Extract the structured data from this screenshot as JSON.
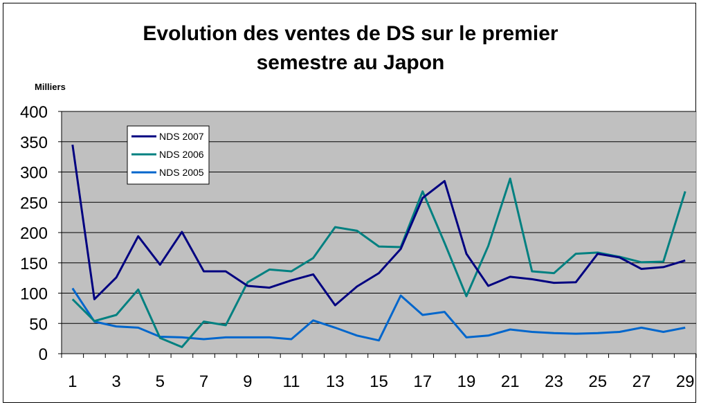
{
  "chart_data": {
    "type": "line",
    "title_line1": "Evolution des ventes de DS sur le premier",
    "title_line2": "semestre au Japon",
    "unit_label": "Milliers",
    "xlabel": "",
    "ylabel": "",
    "ylim": [
      0,
      400
    ],
    "yticks": [
      0,
      50,
      100,
      150,
      200,
      250,
      300,
      350,
      400
    ],
    "x": [
      1,
      2,
      3,
      4,
      5,
      6,
      7,
      8,
      9,
      10,
      11,
      12,
      13,
      14,
      15,
      16,
      17,
      18,
      19,
      20,
      21,
      22,
      23,
      24,
      25,
      26,
      27,
      28,
      29
    ],
    "xtick_labels": [
      "1",
      "3",
      "5",
      "7",
      "9",
      "11",
      "13",
      "15",
      "17",
      "19",
      "21",
      "23",
      "25",
      "27",
      "29"
    ],
    "grid": true,
    "legend_position": "top-left",
    "plot_background": "#c0c0c0",
    "series": [
      {
        "name": "NDS 2007",
        "color": "#000080",
        "values": [
          345,
          90,
          126,
          194,
          147,
          201,
          136,
          136,
          112,
          109,
          121,
          131,
          80,
          111,
          133,
          173,
          257,
          285,
          165,
          112,
          127,
          123,
          117,
          118,
          165,
          159,
          140,
          143,
          154
        ]
      },
      {
        "name": "NDS 2006",
        "color": "#008080",
        "values": [
          90,
          54,
          64,
          106,
          26,
          11,
          53,
          47,
          118,
          139,
          136,
          158,
          209,
          203,
          177,
          176,
          268,
          183,
          95,
          178,
          289,
          136,
          133,
          165,
          167,
          160,
          151,
          152,
          268
        ]
      },
      {
        "name": "NDS 2005",
        "color": "#0066cc",
        "values": [
          108,
          53,
          45,
          43,
          28,
          27,
          24,
          27,
          27,
          27,
          24,
          55,
          43,
          30,
          22,
          96,
          64,
          69,
          27,
          30,
          40,
          36,
          34,
          33,
          34,
          36,
          43,
          36,
          43
        ]
      }
    ]
  }
}
